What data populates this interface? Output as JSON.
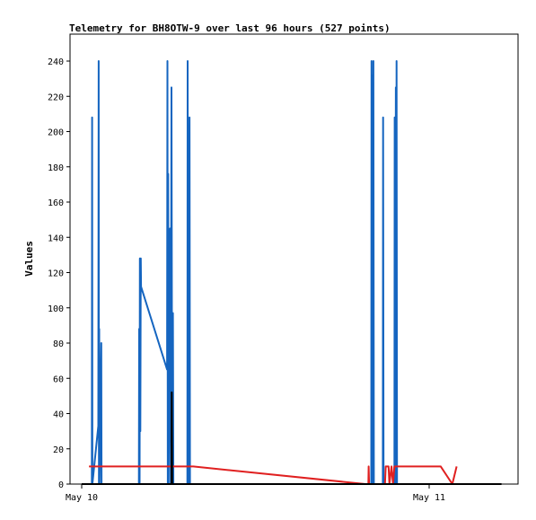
{
  "chart_data": {
    "type": "line",
    "title": "Telemetry for BH8OTW-9 over last 96 hours (527 points)",
    "xlabel": "",
    "ylabel": "Values",
    "x_range_hours": [
      0,
      29
    ],
    "ylim": [
      0,
      255
    ],
    "y_ticks": [
      0,
      20,
      40,
      60,
      80,
      100,
      120,
      140,
      160,
      180,
      200,
      220,
      240
    ],
    "x_ticks": [
      {
        "label": "May 10",
        "hour": 0
      },
      {
        "label": "May 11",
        "hour": 24
      }
    ],
    "series": [
      {
        "color": "#1565c0",
        "points": [
          [
            0.7,
            0
          ],
          [
            0.72,
            208
          ],
          [
            0.74,
            0
          ],
          [
            1.15,
            33
          ],
          [
            1.17,
            240
          ],
          [
            1.19,
            0
          ],
          [
            1.21,
            88
          ],
          [
            1.23,
            0
          ],
          [
            1.35,
            80
          ],
          [
            1.37,
            0
          ],
          [
            3.95,
            0
          ],
          [
            3.97,
            88
          ],
          [
            4.0,
            0
          ],
          [
            4.02,
            128
          ],
          [
            4.05,
            30
          ],
          [
            4.08,
            128
          ],
          [
            4.1,
            112
          ],
          [
            5.9,
            65
          ],
          [
            5.92,
            240
          ],
          [
            5.95,
            0
          ],
          [
            5.97,
            176
          ],
          [
            6.0,
            0
          ],
          [
            6.1,
            145
          ],
          [
            6.15,
            0
          ],
          [
            6.2,
            225
          ],
          [
            6.25,
            0
          ],
          [
            6.3,
            97
          ],
          [
            6.33,
            0
          ],
          [
            7.3,
            0
          ],
          [
            7.32,
            240
          ],
          [
            7.35,
            0
          ],
          [
            7.38,
            193
          ],
          [
            7.4,
            0
          ],
          [
            7.45,
            208
          ],
          [
            7.48,
            0
          ],
          [
            20.0,
            0
          ],
          [
            20.02,
            240
          ],
          [
            20.05,
            97
          ],
          [
            20.08,
            232
          ],
          [
            20.1,
            0
          ],
          [
            20.15,
            240
          ],
          [
            20.18,
            0
          ],
          [
            20.8,
            0
          ],
          [
            20.82,
            208
          ],
          [
            20.85,
            0
          ],
          [
            21.6,
            0
          ],
          [
            21.62,
            208
          ],
          [
            21.65,
            0
          ],
          [
            21.7,
            225
          ],
          [
            21.72,
            0
          ],
          [
            21.75,
            240
          ],
          [
            21.78,
            0
          ]
        ]
      },
      {
        "color": "#e02020",
        "points": [
          [
            0.5,
            10
          ],
          [
            1.2,
            10
          ],
          [
            4.1,
            10
          ],
          [
            7.7,
            10
          ],
          [
            19.6,
            0
          ],
          [
            19.8,
            0
          ],
          [
            19.82,
            10
          ],
          [
            19.85,
            0
          ],
          [
            20.95,
            0
          ],
          [
            21.0,
            10
          ],
          [
            21.2,
            10
          ],
          [
            21.25,
            0
          ],
          [
            21.4,
            10
          ],
          [
            21.5,
            0
          ],
          [
            21.6,
            10
          ],
          [
            24.8,
            10
          ],
          [
            25.6,
            0
          ],
          [
            25.9,
            10
          ]
        ]
      },
      {
        "color": "#000000",
        "points": [
          [
            0,
            0
          ],
          [
            6.2,
            0
          ],
          [
            6.22,
            52
          ],
          [
            6.25,
            0
          ],
          [
            29,
            0
          ]
        ]
      }
    ]
  }
}
